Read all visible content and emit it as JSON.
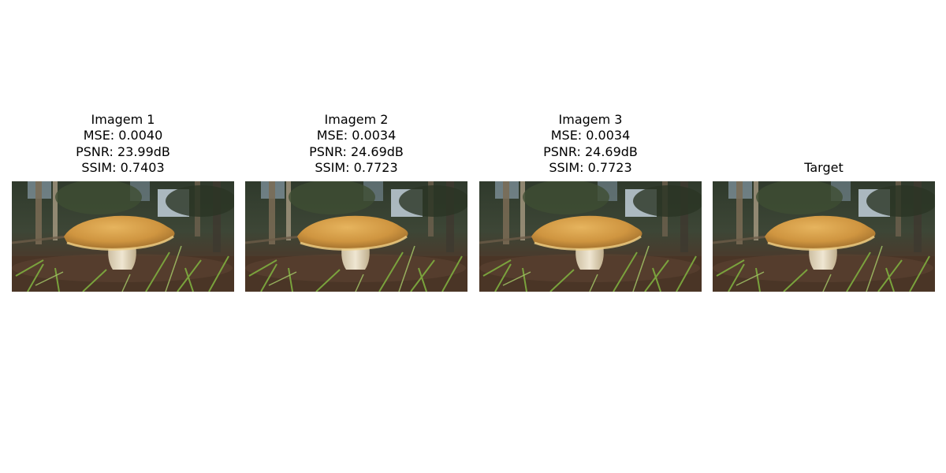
{
  "panels": [
    {
      "title": "Imagem 1",
      "mse": "MSE: 0.0040",
      "psnr": "PSNR: 23.99dB",
      "ssim": "SSIM: 0.7403"
    },
    {
      "title": "Imagem 2",
      "mse": "MSE: 0.0034",
      "psnr": "PSNR: 24.69dB",
      "ssim": "SSIM: 0.7723"
    },
    {
      "title": "Imagem 3",
      "mse": "MSE: 0.0034",
      "psnr": "PSNR: 24.69dB",
      "ssim": "SSIM: 0.7723"
    },
    {
      "title": "Target"
    }
  ]
}
